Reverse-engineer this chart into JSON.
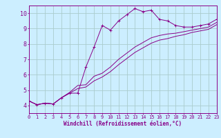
{
  "bg_color": "#cceeff",
  "grid_color": "#aacccc",
  "line_color": "#880088",
  "xlabel": "Windchill (Refroidissement éolien,°C)",
  "xlim": [
    0,
    23
  ],
  "ylim": [
    3.5,
    10.5
  ],
  "xticks": [
    0,
    1,
    2,
    3,
    4,
    5,
    6,
    7,
    8,
    9,
    10,
    11,
    12,
    13,
    14,
    15,
    16,
    17,
    18,
    19,
    20,
    21,
    22,
    23
  ],
  "yticks": [
    4,
    5,
    6,
    7,
    8,
    9,
    10
  ],
  "series1_x": [
    0,
    1,
    2,
    3,
    4,
    5,
    6,
    7,
    8,
    9,
    10,
    11,
    12,
    13,
    14,
    15,
    16,
    17,
    18,
    19,
    20,
    21,
    22,
    23
  ],
  "series1_y": [
    4.3,
    4.05,
    4.15,
    4.1,
    4.5,
    4.8,
    4.8,
    6.5,
    7.8,
    9.2,
    8.9,
    9.5,
    9.9,
    10.3,
    10.1,
    10.2,
    9.6,
    9.5,
    9.2,
    9.1,
    9.1,
    9.2,
    9.3,
    9.6
  ],
  "series2_x": [
    0,
    1,
    2,
    3,
    4,
    5,
    6,
    7,
    8,
    9,
    10,
    11,
    12,
    13,
    14,
    15,
    16,
    17,
    18,
    19,
    20,
    21,
    22,
    23
  ],
  "series2_y": [
    4.3,
    4.05,
    4.15,
    4.1,
    4.5,
    4.85,
    5.3,
    5.35,
    5.9,
    6.1,
    6.5,
    7.0,
    7.4,
    7.8,
    8.1,
    8.4,
    8.55,
    8.65,
    8.7,
    8.8,
    8.9,
    9.0,
    9.1,
    9.4
  ],
  "series3_x": [
    0,
    1,
    2,
    3,
    4,
    5,
    6,
    7,
    8,
    9,
    10,
    11,
    12,
    13,
    14,
    15,
    16,
    17,
    18,
    19,
    20,
    21,
    22,
    23
  ],
  "series3_y": [
    4.3,
    4.05,
    4.15,
    4.1,
    4.5,
    4.8,
    5.1,
    5.2,
    5.6,
    5.85,
    6.2,
    6.65,
    7.05,
    7.45,
    7.75,
    8.05,
    8.25,
    8.35,
    8.5,
    8.6,
    8.75,
    8.85,
    8.95,
    9.25
  ],
  "xlabel_fontsize": 5.5,
  "tick_fontsize": 5.0,
  "ytick_fontsize": 6.0
}
